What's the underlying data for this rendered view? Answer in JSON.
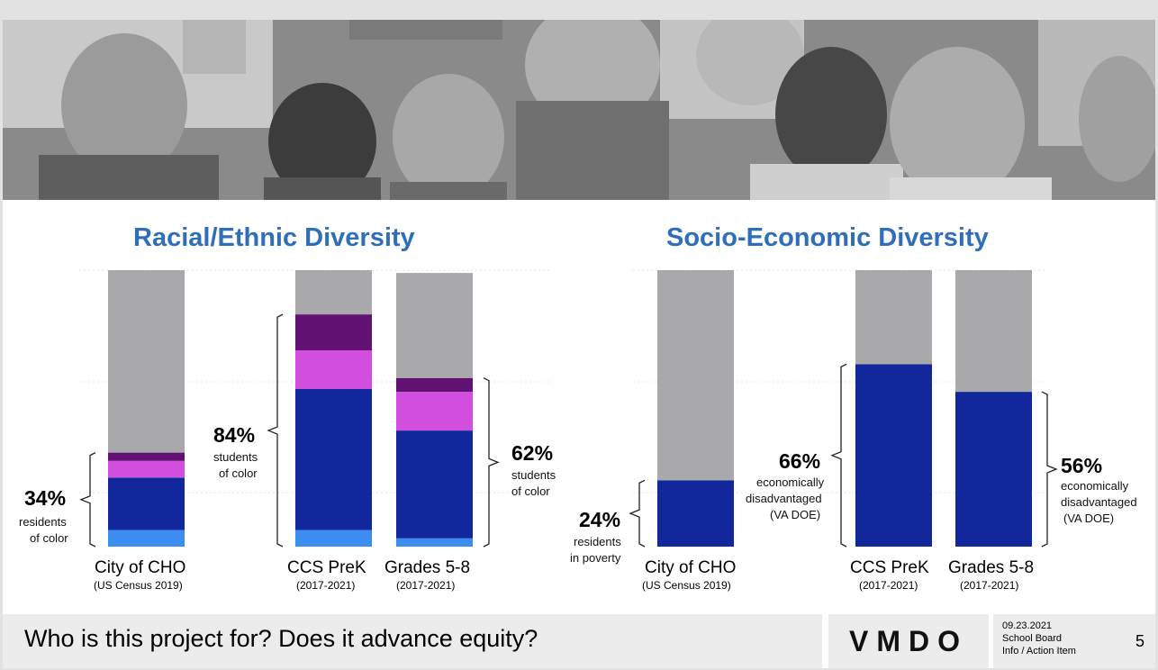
{
  "headings": {
    "racial": "Racial/Ethnic Diversity",
    "socio": "Socio-Economic Diversity"
  },
  "colors": {
    "gray": "#a9a9ab",
    "dark_purple": "#611272",
    "magenta": "#d24ede",
    "navy": "#13279c",
    "light_blue": "#3b8df0",
    "heading_blue": "#2f6fba"
  },
  "chart_data": [
    {
      "type": "bar",
      "stacked": true,
      "title": "Racial/Ethnic Diversity",
      "categories": [
        "City of CHO",
        "CCS PreK",
        "Grades 5-8"
      ],
      "sources": [
        "(US Census 2019)",
        "(2017-2021)",
        "(2017-2021)"
      ],
      "ylim": [
        0,
        100
      ],
      "series": [
        {
          "name": "light blue group",
          "color": "#3b8df0",
          "values": [
            6,
            6,
            3
          ]
        },
        {
          "name": "navy group",
          "color": "#13279c",
          "values": [
            19,
            51,
            39
          ]
        },
        {
          "name": "magenta group",
          "color": "#d24ede",
          "values": [
            6,
            14,
            14
          ]
        },
        {
          "name": "dark purple group",
          "color": "#611272",
          "values": [
            3,
            13,
            5
          ]
        },
        {
          "name": "remainder",
          "color": "#a9a9ab",
          "values": [
            66,
            16,
            38
          ]
        }
      ],
      "annotations": [
        {
          "pct": "34%",
          "lines": [
            "residents",
            "of color"
          ]
        },
        {
          "pct": "84%",
          "lines": [
            "students",
            "of color"
          ]
        },
        {
          "pct": "62%",
          "lines": [
            "students",
            "of color"
          ]
        }
      ]
    },
    {
      "type": "bar",
      "stacked": true,
      "title": "Socio-Economic Diversity",
      "categories": [
        "City of CHO",
        "CCS PreK",
        "Grades 5-8"
      ],
      "sources": [
        "(US Census 2019)",
        "(2017-2021)",
        "(2017-2021)"
      ],
      "ylim": [
        0,
        100
      ],
      "series": [
        {
          "name": "in poverty / economically disadvantaged",
          "color": "#13279c",
          "values": [
            24,
            66,
            56
          ]
        },
        {
          "name": "remainder",
          "color": "#a9a9ab",
          "values": [
            76,
            34,
            44
          ]
        }
      ],
      "annotations": [
        {
          "pct": "24%",
          "lines": [
            "residents",
            "in poverty"
          ]
        },
        {
          "pct": "66%",
          "lines": [
            "economically",
            "disadvantaged",
            "(VA DOE)"
          ]
        },
        {
          "pct": "56%",
          "lines": [
            "economically",
            "disadvantaged",
            "(VA DOE)"
          ]
        }
      ]
    }
  ],
  "footer": {
    "question": "Who is this project for?  Does it advance equity?",
    "logo": "VMDO",
    "date": "09.23.2021",
    "meeting": "School Board",
    "item": "Info / Action Item",
    "page": "5"
  }
}
